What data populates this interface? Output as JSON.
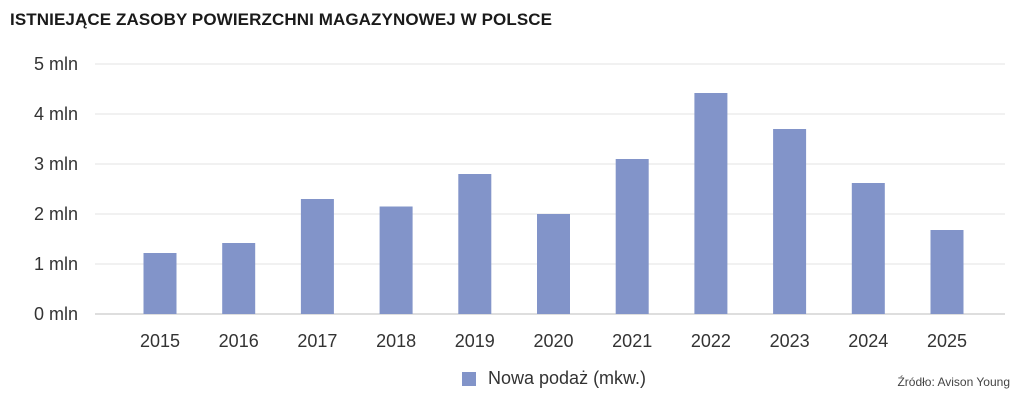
{
  "chart_data": {
    "type": "bar",
    "title": "ISTNIEJĄCE ZASOBY POWIERZCHNI MAGAZYNOWEJ W POLSCE",
    "categories": [
      "2015",
      "2016",
      "2017",
      "2018",
      "2019",
      "2020",
      "2021",
      "2022",
      "2023",
      "2024",
      "2025"
    ],
    "series": [
      {
        "name": "Nowa podaż (mkw.)",
        "values": [
          1.22,
          1.42,
          2.3,
          2.15,
          2.8,
          2.0,
          3.1,
          4.42,
          3.7,
          2.62,
          1.68
        ]
      }
    ],
    "yticks": [
      "0 mln",
      "1 mln",
      "2 mln",
      "3 mln",
      "4 mln",
      "5 mln"
    ],
    "ylim": [
      0,
      5
    ],
    "grid": true,
    "legend_position": "bottom-center",
    "colors": {
      "bar": "#8294c9",
      "grid": "#e3e3e3",
      "axis": "#bdbdbd"
    }
  },
  "source": "Źródło: Avison Young"
}
